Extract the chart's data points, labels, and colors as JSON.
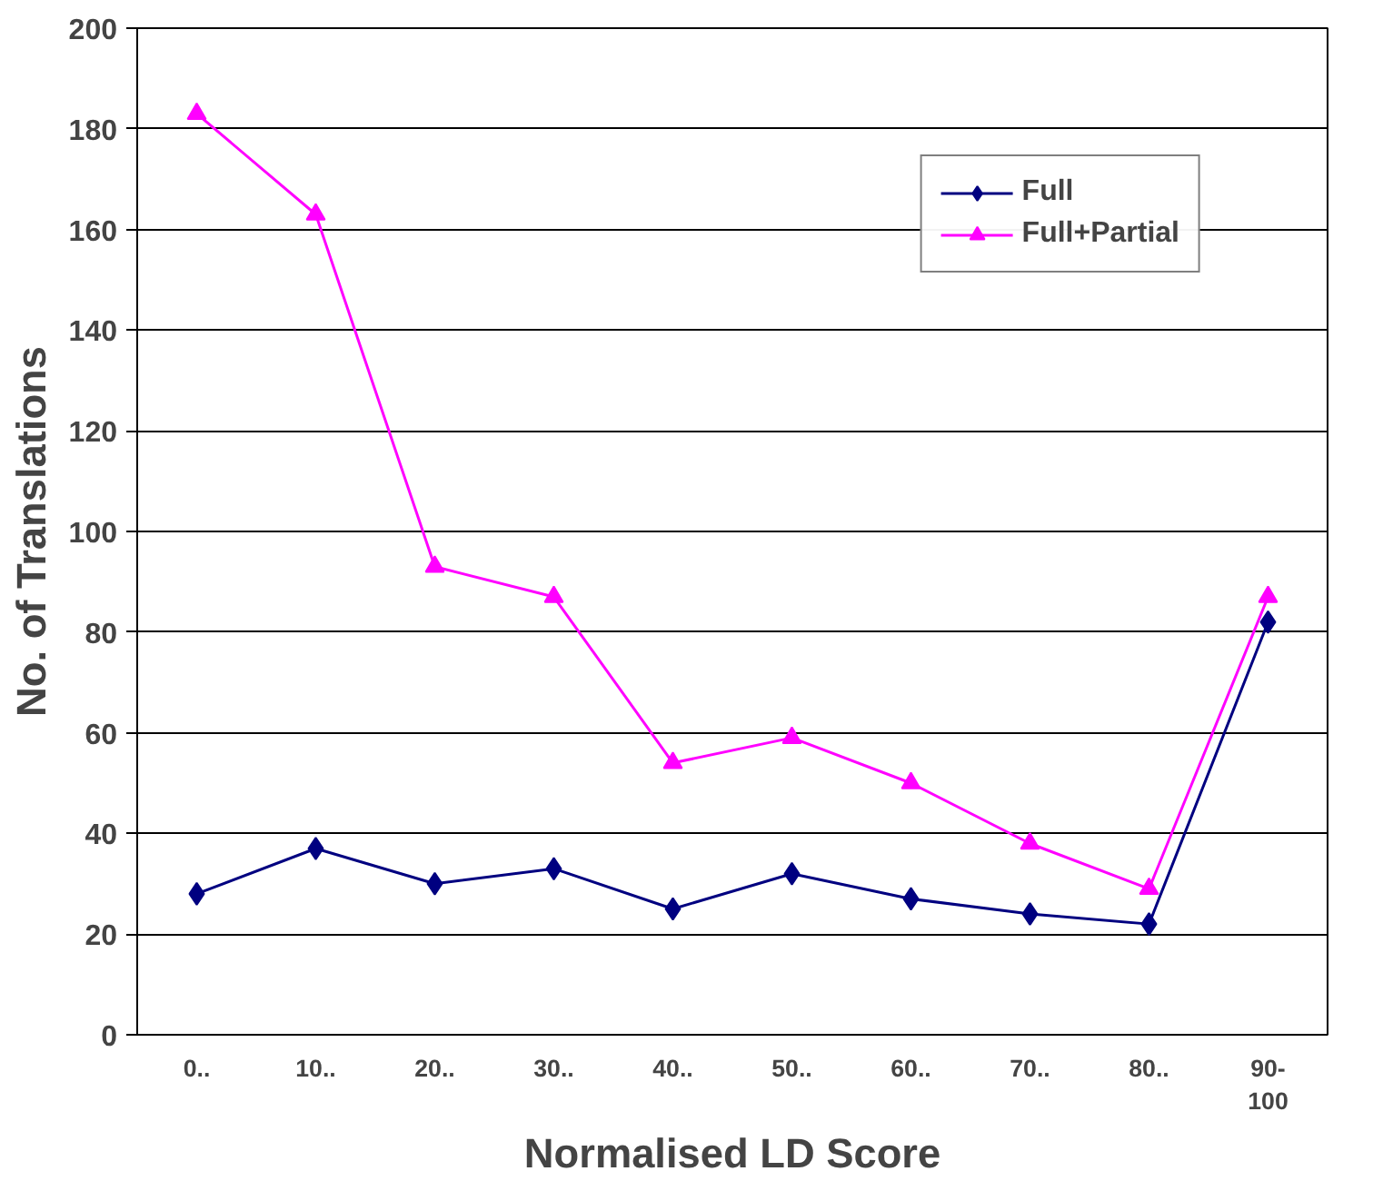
{
  "chart_data": {
    "type": "line",
    "xlabel": "Normalised LD Score",
    "ylabel": "No. of Translations",
    "categories": [
      "0..",
      "10..",
      "20..",
      "30..",
      "40..",
      "50..",
      "60..",
      "70..",
      "80..",
      "90-\n100"
    ],
    "series": [
      {
        "name": "Full",
        "color": "#000080",
        "marker": "diamond",
        "values": [
          28,
          37,
          30,
          33,
          25,
          32,
          27,
          24,
          22,
          82
        ]
      },
      {
        "name": "Full+Partial",
        "color": "#ff00ff",
        "marker": "triangle",
        "values": [
          183,
          163,
          93,
          87,
          54,
          59,
          50,
          38,
          29,
          87
        ]
      }
    ],
    "ylim": [
      0,
      200
    ],
    "yticks": [
      0,
      20,
      40,
      60,
      80,
      100,
      120,
      140,
      160,
      180,
      200
    ],
    "grid": "y",
    "legend": "top right",
    "line_style": "solid"
  }
}
